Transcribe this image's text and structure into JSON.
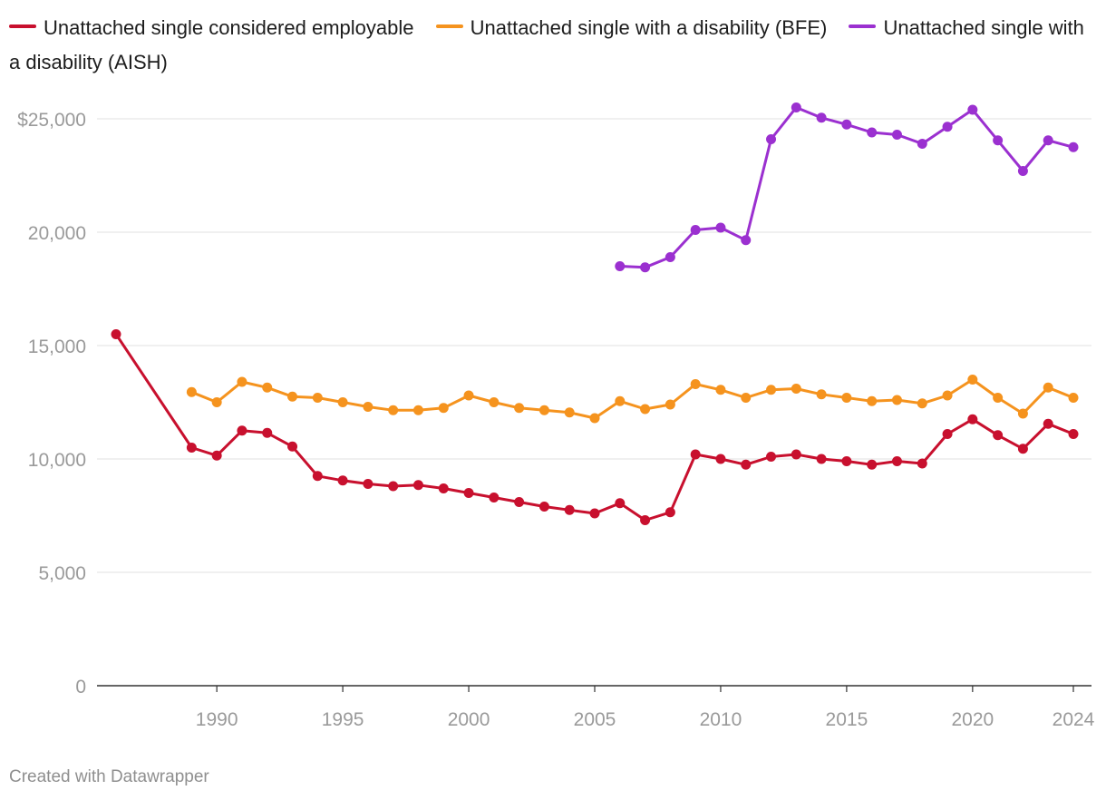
{
  "chart_data": {
    "type": "line",
    "title": "",
    "xlabel": "",
    "ylabel": "",
    "xlim": [
      1986,
      2024
    ],
    "ylim": [
      0,
      25000
    ],
    "grid": true,
    "legend_position": "top-left",
    "x_ticks": [
      1990,
      1995,
      2000,
      2005,
      2010,
      2015,
      2020,
      2024
    ],
    "x_tick_labels": [
      "1990",
      "1995",
      "2000",
      "2005",
      "2010",
      "2015",
      "2020",
      "2024"
    ],
    "y_ticks": [
      0,
      5000,
      10000,
      15000,
      20000,
      25000
    ],
    "y_tick_labels": [
      "0",
      "5,000",
      "10,000",
      "15,000",
      "20,000",
      "$25,000"
    ],
    "series": [
      {
        "name": "Unattached single considered employable",
        "color": "#c8102e",
        "x": [
          1986,
          1989,
          1990,
          1991,
          1992,
          1993,
          1994,
          1995,
          1996,
          1997,
          1998,
          1999,
          2000,
          2001,
          2002,
          2003,
          2004,
          2005,
          2006,
          2007,
          2008,
          2009,
          2010,
          2011,
          2012,
          2013,
          2014,
          2015,
          2016,
          2017,
          2018,
          2019,
          2020,
          2021,
          2022,
          2023,
          2024
        ],
        "values": [
          15500,
          10500,
          10150,
          11250,
          11150,
          10550,
          9250,
          9050,
          8900,
          8800,
          8850,
          8700,
          8500,
          8300,
          8100,
          7900,
          7750,
          7600,
          8050,
          7300,
          7650,
          10200,
          10000,
          9750,
          10100,
          10200,
          10000,
          9900,
          9750,
          9900,
          9800,
          11100,
          11750,
          11050,
          10450,
          11550,
          11100
        ]
      },
      {
        "name": "Unattached single with a disability (BFE)",
        "color": "#f5931e",
        "x": [
          1989,
          1990,
          1991,
          1992,
          1993,
          1994,
          1995,
          1996,
          1997,
          1998,
          1999,
          2000,
          2001,
          2002,
          2003,
          2004,
          2005,
          2006,
          2007,
          2008,
          2009,
          2010,
          2011,
          2012,
          2013,
          2014,
          2015,
          2016,
          2017,
          2018,
          2019,
          2020,
          2021,
          2022,
          2023,
          2024
        ],
        "values": [
          12950,
          12500,
          13400,
          13150,
          12750,
          12700,
          12500,
          12300,
          12150,
          12150,
          12250,
          12800,
          12500,
          12250,
          12150,
          12050,
          11800,
          12550,
          12200,
          12400,
          13300,
          13050,
          12700,
          13050,
          13100,
          12850,
          12700,
          12550,
          12600,
          12450,
          12800,
          13500,
          12700,
          12000,
          13150,
          12700
        ]
      },
      {
        "name": "Unattached single with a disability (AISH)",
        "color": "#9b30d0",
        "x": [
          2006,
          2007,
          2008,
          2009,
          2010,
          2011,
          2012,
          2013,
          2014,
          2015,
          2016,
          2017,
          2018,
          2019,
          2020,
          2021,
          2022,
          2023,
          2024
        ],
        "values": [
          18500,
          18450,
          18900,
          20100,
          20200,
          19650,
          24100,
          25500,
          25050,
          24750,
          24400,
          24300,
          23900,
          24650,
          25400,
          24050,
          22700,
          24050,
          23750
        ]
      }
    ]
  },
  "legend": {
    "items": [
      {
        "label": "Unattached single considered employable"
      },
      {
        "label": "Unattached single with a disability (BFE)"
      },
      {
        "label": "Unattached single with a disability (AISH)"
      }
    ]
  },
  "footer": {
    "credit": "Created with Datawrapper"
  }
}
